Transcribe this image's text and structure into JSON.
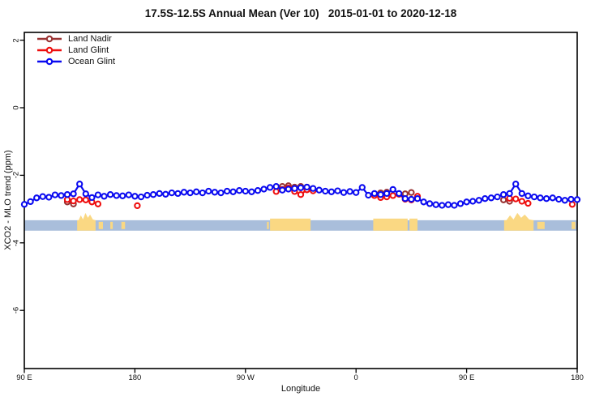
{
  "title": "17.5S-12.5S Annual Mean (Ver 10)   2015-01-01 to 2020-12-18",
  "colors": {
    "land_nadir": "#993333",
    "land_glint": "#ee0e0e",
    "ocean_glint": "#0a0af0",
    "ocean_band": "#a9bedb",
    "land_patch": "#fad883",
    "axis": "#000000"
  },
  "legend": {
    "items": [
      {
        "label": "Land Nadir",
        "color": "#993333"
      },
      {
        "label": "Land Glint",
        "color": "#ee0e0e"
      },
      {
        "label": "Ocean Glint",
        "color": "#0a0af0"
      }
    ]
  },
  "chart_data": {
    "type": "line",
    "title": "17.5S-12.5S Annual Mean (Ver 10)   2015-01-01 to 2020-12-18",
    "xlabel": "Longitude",
    "ylabel": "XCO2 - MLO trend (ppm)",
    "grid": false,
    "legend_position": "top-left",
    "x_axis": {
      "start_longitude": "90 E (wraps eastward through dateline and back to 180)",
      "span_degrees": 450,
      "tick_degrees": [
        0,
        90,
        180,
        270,
        360,
        450
      ],
      "tick_labels": [
        "90 E",
        "180",
        "90 W",
        "0",
        "90 E",
        "180"
      ]
    },
    "y_axis": {
      "tick_values": [
        2,
        0,
        -2,
        -4,
        -6
      ],
      "tick_labels": [
        "2",
        "0",
        "-2",
        "-4",
        "-6"
      ],
      "range_shown": [
        -7.7,
        2.25
      ]
    },
    "map_strip": {
      "description": "ocean band with land silhouettes along 17.5S-12.5S",
      "band_top_value": -3.33,
      "band_bottom_value": -3.64,
      "land_patches": [
        {
          "from_deg": 43.0,
          "to_deg": 58.0,
          "style": "bumpy"
        },
        {
          "from_deg": 60.5,
          "to_deg": 64.0,
          "style": "island"
        },
        {
          "from_deg": 70.0,
          "to_deg": 72.0,
          "style": "island"
        },
        {
          "from_deg": 79.0,
          "to_deg": 82.0,
          "style": "island"
        },
        {
          "from_deg": 197.5,
          "to_deg": 199.0,
          "style": "island"
        },
        {
          "from_deg": 200.0,
          "to_deg": 233.0,
          "style": "flat"
        },
        {
          "from_deg": 284.0,
          "to_deg": 312.0,
          "style": "flat"
        },
        {
          "from_deg": 313.5,
          "to_deg": 320.0,
          "style": "flat"
        },
        {
          "from_deg": 390.5,
          "to_deg": 414.5,
          "style": "bumpy"
        },
        {
          "from_deg": 417.5,
          "to_deg": 423.5,
          "style": "island"
        },
        {
          "from_deg": 445.5,
          "to_deg": 448.5,
          "style": "island"
        }
      ]
    },
    "series": [
      {
        "name": "Land Nadir",
        "color": "#993333",
        "points": [
          [
            35,
            -2.79
          ],
          [
            40,
            -2.85
          ],
          [
            210,
            -2.33
          ],
          [
            215,
            -2.31
          ],
          [
            220,
            -2.35
          ],
          [
            225,
            -2.33
          ],
          [
            230,
            -2.35
          ],
          [
            290,
            -2.52
          ],
          [
            295,
            -2.5
          ],
          [
            310,
            -2.55
          ],
          [
            315,
            -2.51
          ],
          [
            390,
            -2.73
          ],
          [
            395,
            -2.77
          ]
        ]
      },
      {
        "name": "Land Glint",
        "color": "#ee0e0e",
        "points": [
          [
            35,
            -2.72
          ],
          [
            40,
            -2.76
          ],
          [
            45,
            -2.72
          ],
          [
            50,
            -2.73
          ],
          [
            55,
            -2.79
          ],
          [
            60,
            -2.85
          ],
          [
            92,
            -2.9
          ],
          [
            205,
            -2.48
          ],
          [
            210,
            -2.42
          ],
          [
            215,
            -2.38
          ],
          [
            220,
            -2.48
          ],
          [
            225,
            -2.57
          ],
          [
            230,
            -2.43
          ],
          [
            235,
            -2.46
          ],
          [
            285,
            -2.6
          ],
          [
            290,
            -2.66
          ],
          [
            295,
            -2.64
          ],
          [
            300,
            -2.6
          ],
          [
            305,
            -2.56
          ],
          [
            310,
            -2.71
          ],
          [
            315,
            -2.73
          ],
          [
            320,
            -2.62
          ],
          [
            395,
            -2.68
          ],
          [
            400,
            -2.7
          ],
          [
            405,
            -2.77
          ],
          [
            410,
            -2.83
          ],
          [
            446,
            -2.86
          ]
        ]
      },
      {
        "name": "Ocean Glint",
        "color": "#0a0af0",
        "points": [
          [
            0,
            -2.86
          ],
          [
            5,
            -2.78
          ],
          [
            10,
            -2.67
          ],
          [
            15,
            -2.63
          ],
          [
            20,
            -2.65
          ],
          [
            25,
            -2.58
          ],
          [
            30,
            -2.6
          ],
          [
            35,
            -2.57
          ],
          [
            40,
            -2.55
          ],
          [
            45,
            -2.26
          ],
          [
            50,
            -2.55
          ],
          [
            55,
            -2.66
          ],
          [
            60,
            -2.58
          ],
          [
            65,
            -2.62
          ],
          [
            70,
            -2.57
          ],
          [
            75,
            -2.6
          ],
          [
            80,
            -2.61
          ],
          [
            85,
            -2.58
          ],
          [
            90,
            -2.62
          ],
          [
            95,
            -2.64
          ],
          [
            100,
            -2.59
          ],
          [
            105,
            -2.57
          ],
          [
            110,
            -2.54
          ],
          [
            115,
            -2.56
          ],
          [
            120,
            -2.52
          ],
          [
            125,
            -2.54
          ],
          [
            130,
            -2.5
          ],
          [
            135,
            -2.52
          ],
          [
            140,
            -2.49
          ],
          [
            145,
            -2.52
          ],
          [
            150,
            -2.47
          ],
          [
            155,
            -2.5
          ],
          [
            160,
            -2.52
          ],
          [
            165,
            -2.47
          ],
          [
            170,
            -2.49
          ],
          [
            175,
            -2.45
          ],
          [
            180,
            -2.47
          ],
          [
            185,
            -2.49
          ],
          [
            190,
            -2.45
          ],
          [
            195,
            -2.41
          ],
          [
            200,
            -2.36
          ],
          [
            205,
            -2.33
          ],
          [
            210,
            -2.44
          ],
          [
            215,
            -2.41
          ],
          [
            220,
            -2.39
          ],
          [
            225,
            -2.37
          ],
          [
            230,
            -2.35
          ],
          [
            235,
            -2.39
          ],
          [
            240,
            -2.44
          ],
          [
            245,
            -2.47
          ],
          [
            250,
            -2.49
          ],
          [
            255,
            -2.46
          ],
          [
            260,
            -2.51
          ],
          [
            265,
            -2.48
          ],
          [
            270,
            -2.51
          ],
          [
            275,
            -2.36
          ],
          [
            280,
            -2.59
          ],
          [
            285,
            -2.54
          ],
          [
            290,
            -2.57
          ],
          [
            295,
            -2.54
          ],
          [
            300,
            -2.42
          ],
          [
            305,
            -2.54
          ],
          [
            310,
            -2.69
          ],
          [
            315,
            -2.71
          ],
          [
            320,
            -2.69
          ],
          [
            325,
            -2.79
          ],
          [
            330,
            -2.84
          ],
          [
            335,
            -2.87
          ],
          [
            340,
            -2.89
          ],
          [
            345,
            -2.87
          ],
          [
            350,
            -2.89
          ],
          [
            355,
            -2.84
          ],
          [
            360,
            -2.79
          ],
          [
            365,
            -2.77
          ],
          [
            370,
            -2.74
          ],
          [
            375,
            -2.69
          ],
          [
            380,
            -2.67
          ],
          [
            385,
            -2.64
          ],
          [
            390,
            -2.57
          ],
          [
            395,
            -2.54
          ],
          [
            400,
            -2.26
          ],
          [
            405,
            -2.54
          ],
          [
            410,
            -2.61
          ],
          [
            415,
            -2.64
          ],
          [
            420,
            -2.67
          ],
          [
            425,
            -2.69
          ],
          [
            430,
            -2.67
          ],
          [
            435,
            -2.71
          ],
          [
            440,
            -2.74
          ],
          [
            445,
            -2.71
          ],
          [
            450,
            -2.72
          ]
        ]
      }
    ]
  }
}
